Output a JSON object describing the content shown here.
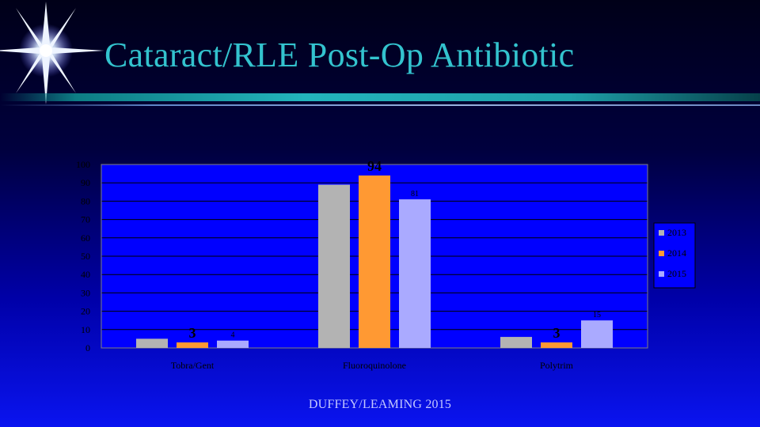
{
  "slide": {
    "title": "Cataract/RLE Post-Op Antibiotic",
    "footer": "DUFFEY/LEAMING 2015",
    "star_icon": "sparkle-star-icon"
  },
  "colors": {
    "title": "#33c3ce",
    "series_2013": "#b3b3b3",
    "series_2014": "#ff9933",
    "series_2015": "#aaaaff",
    "plot_background": "#0000ff"
  },
  "chart_data": {
    "type": "bar",
    "categories": [
      "Tobra/Gent",
      "Fluoroquinolone",
      "Polytrim"
    ],
    "series": [
      {
        "name": "2013",
        "values": [
          5,
          89,
          6
        ]
      },
      {
        "name": "2014",
        "values": [
          3,
          94,
          3
        ]
      },
      {
        "name": "2015",
        "values": [
          4,
          81,
          15
        ]
      }
    ],
    "data_labels": [
      {
        "series": 1,
        "category": 0,
        "text": "3",
        "size": "large"
      },
      {
        "series": 2,
        "category": 0,
        "text": "4",
        "size": "small"
      },
      {
        "series": 1,
        "category": 1,
        "text": "94",
        "size": "large"
      },
      {
        "series": 2,
        "category": 1,
        "text": "81",
        "size": "small"
      },
      {
        "series": 1,
        "category": 2,
        "text": "3",
        "size": "large"
      },
      {
        "series": 2,
        "category": 2,
        "text": "15",
        "size": "small"
      }
    ],
    "ylim": [
      0,
      100
    ],
    "yticks": [
      0,
      10,
      20,
      30,
      40,
      50,
      60,
      70,
      80,
      90,
      100
    ],
    "grid": true,
    "legend": "right",
    "title": "",
    "xlabel": "",
    "ylabel": ""
  }
}
